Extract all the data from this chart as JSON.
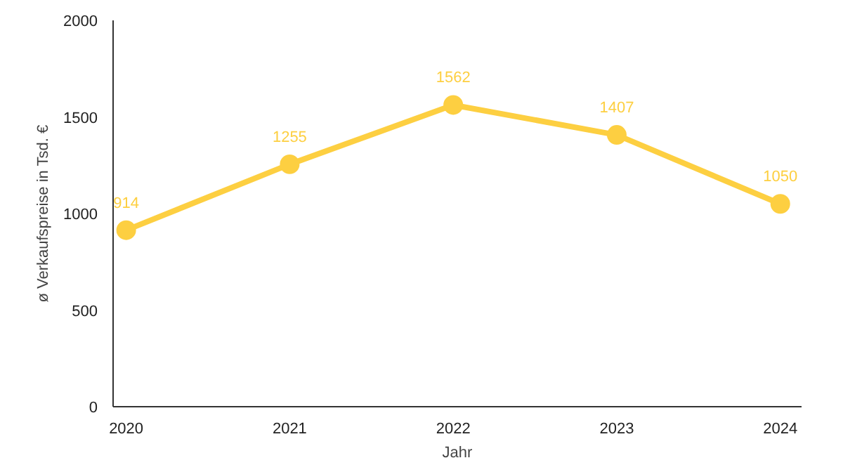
{
  "chart_data": {
    "type": "line",
    "xlabel": "Jahr",
    "ylabel": "ø Verkaufspreise in Tsd. €",
    "categories": [
      "2020",
      "2021",
      "2022",
      "2023",
      "2024"
    ],
    "series": [
      {
        "color": "#fdcf41",
        "values": [
          914,
          1255,
          1562,
          1407,
          1050
        ]
      }
    ],
    "ylim": [
      0,
      2000
    ],
    "yticks": [
      0,
      500,
      1000,
      1500,
      2000
    ],
    "grid": false,
    "marker": "circle",
    "line_style": "solid",
    "data_labels": true
  }
}
